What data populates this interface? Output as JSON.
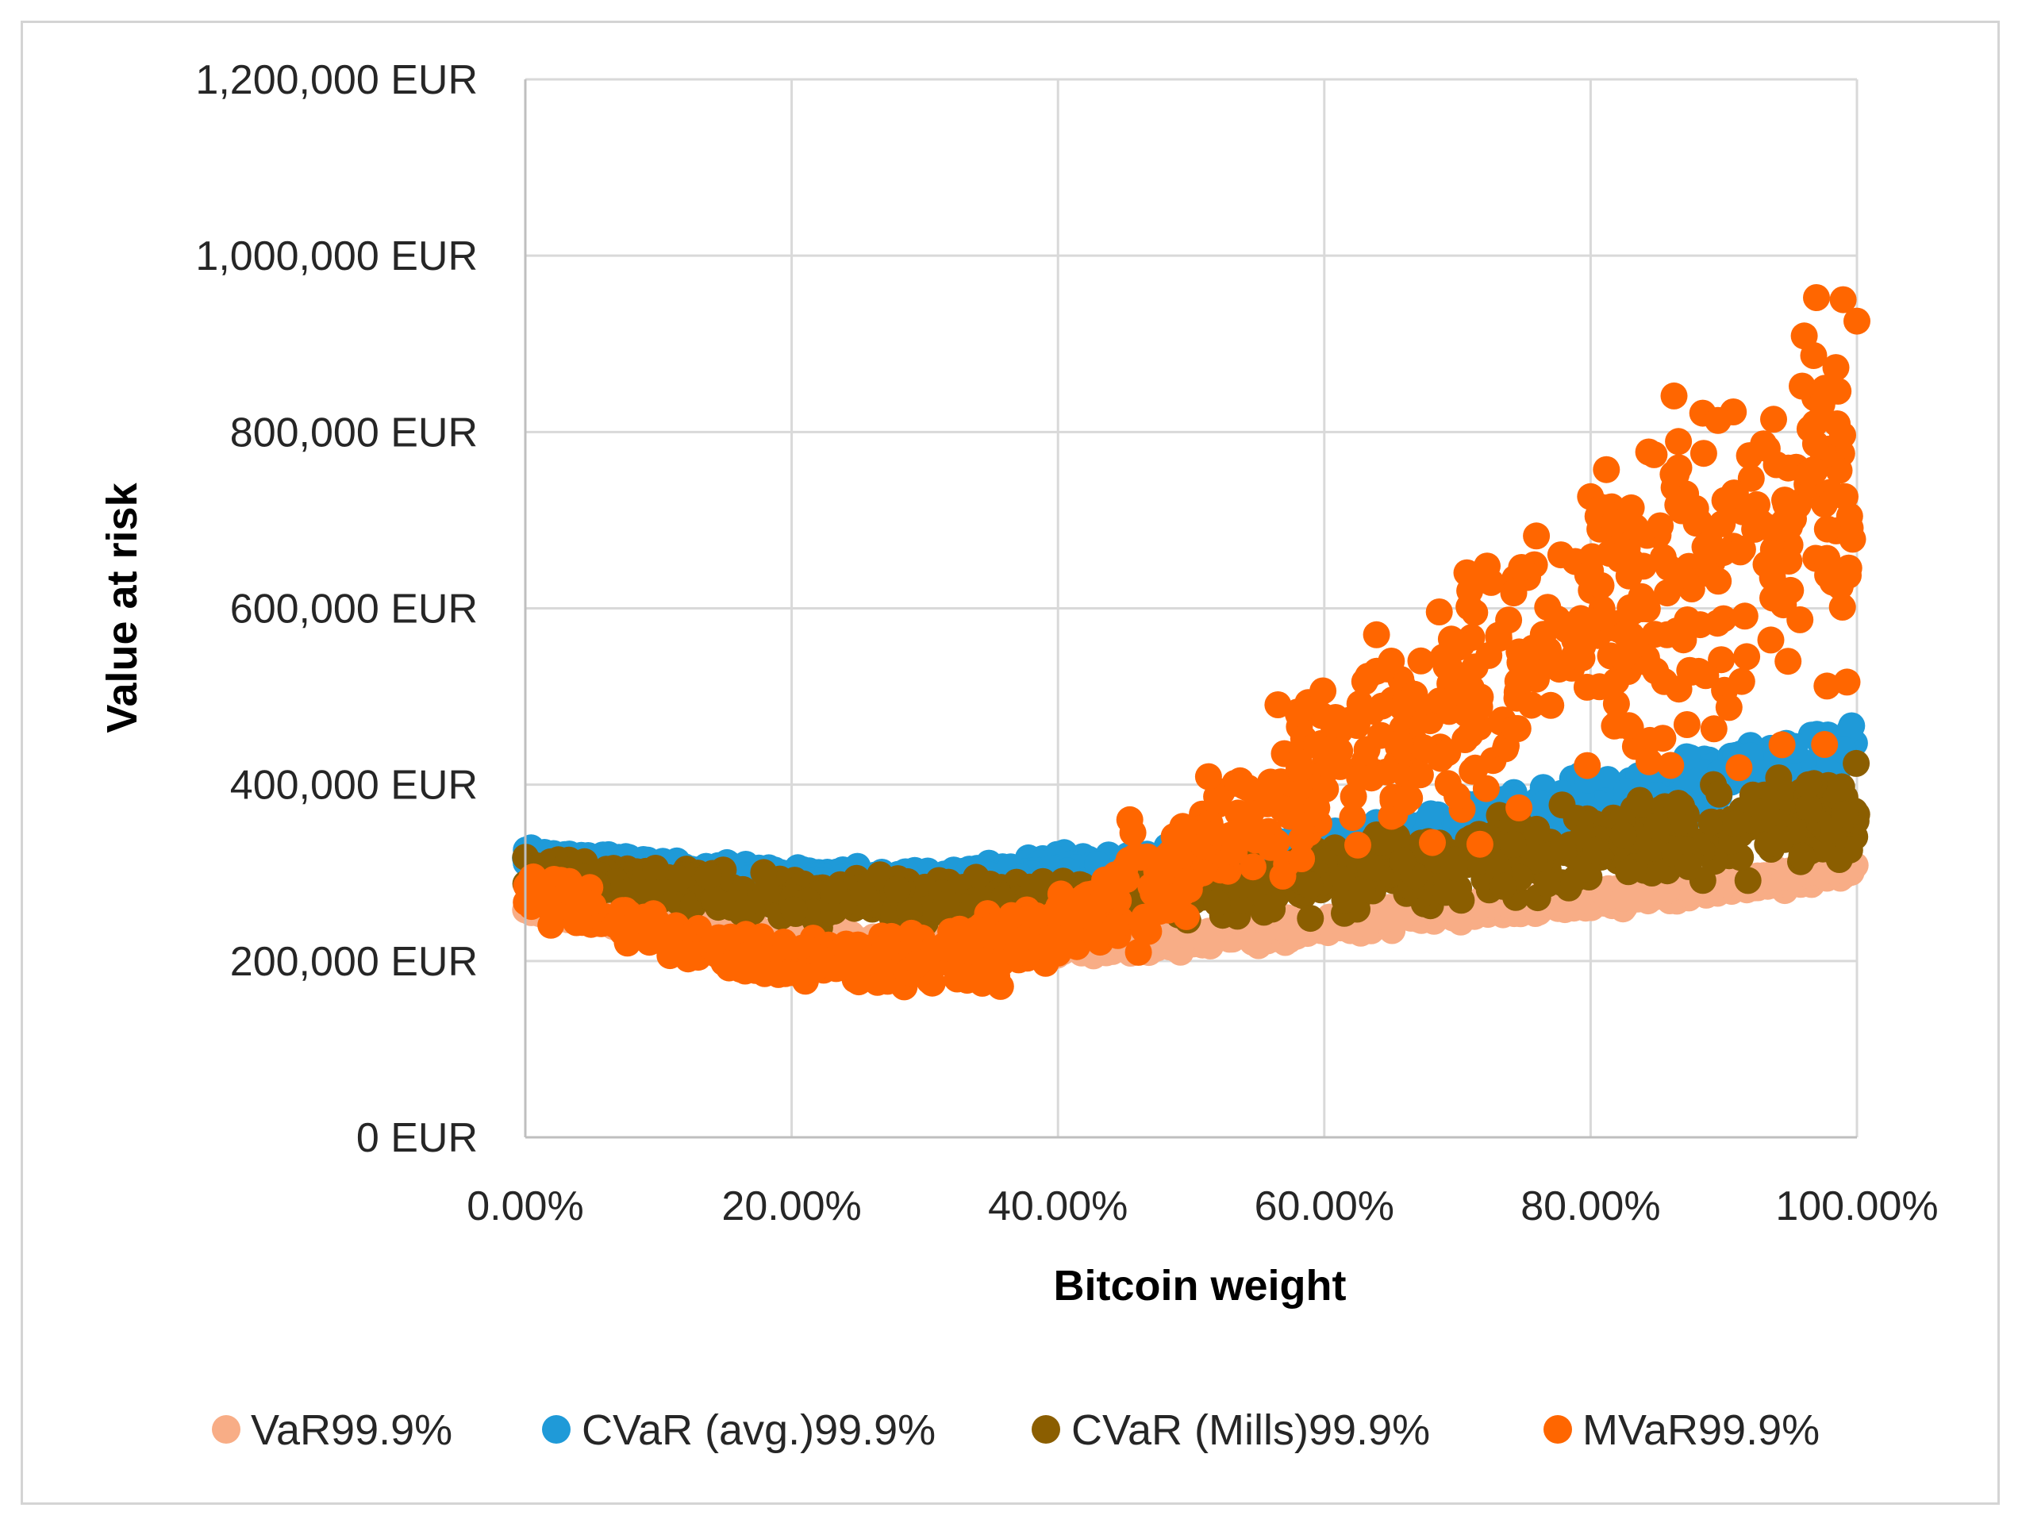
{
  "chart_data": {
    "type": "scatter",
    "title": "",
    "xlabel": "Bitcoin weight",
    "ylabel": "Value at risk",
    "xlim": [
      0,
      1
    ],
    "ylim": [
      0,
      1200000
    ],
    "x_tick_labels": [
      "0.00%",
      "20.00%",
      "40.00%",
      "60.00%",
      "80.00%",
      "100.00%"
    ],
    "x_ticks": [
      0,
      0.2,
      0.4,
      0.6,
      0.8,
      1.0
    ],
    "y_tick_labels": [
      "0 EUR",
      "200,000 EUR",
      "400,000 EUR",
      "600,000 EUR",
      "800,000 EUR",
      "1,000,000 EUR",
      "1,200,000 EUR"
    ],
    "y_ticks": [
      0,
      200000,
      400000,
      600000,
      800000,
      1000000,
      1200000
    ],
    "grid": true,
    "legend_position": "bottom",
    "series": [
      {
        "name": "VaR99.9%",
        "color": "#f8ad86",
        "x": [
          0,
          0.1,
          0.2,
          0.3,
          0.4,
          0.5,
          0.6,
          0.7,
          0.8,
          0.9,
          1.0
        ],
        "y": [
          262000,
          245000,
          225000,
          215000,
          215000,
          225000,
          240000,
          255000,
          270000,
          285000,
          305000
        ],
        "y_spread": [
          8000,
          10000,
          12000,
          12000,
          12000,
          12000,
          12000,
          12000,
          12000,
          12000,
          12000
        ]
      },
      {
        "name": "CVaR (avg.)99.9%",
        "color": "#1f9ad8",
        "x": [
          0,
          0.1,
          0.2,
          0.3,
          0.4,
          0.5,
          0.6,
          0.7,
          0.8,
          0.9,
          1.0
        ],
        "y": [
          320000,
          305000,
          295000,
          295000,
          305000,
          315000,
          330000,
          355000,
          380000,
          410000,
          440000
        ],
        "y_spread": [
          12000,
          10000,
          10000,
          10000,
          12000,
          15000,
          20000,
          25000,
          30000,
          35000,
          35000
        ]
      },
      {
        "name": "CVaR (Mills)99.9%",
        "color": "#8b5e00",
        "x": [
          0,
          0.1,
          0.2,
          0.3,
          0.4,
          0.5,
          0.6,
          0.7,
          0.8,
          0.9,
          1.0
        ],
        "y": [
          300000,
          285000,
          270000,
          268000,
          270000,
          280000,
          295000,
          310000,
          330000,
          350000,
          365000
        ],
        "y_spread": [
          20000,
          20000,
          25000,
          25000,
          25000,
          30000,
          35000,
          40000,
          45000,
          50000,
          55000
        ]
      },
      {
        "name": "MVaR99.9%",
        "color": "#ff6600",
        "x": [
          0,
          0.1,
          0.2,
          0.3,
          0.4,
          0.5,
          0.6,
          0.7,
          0.8,
          0.9,
          1.0
        ],
        "y": [
          280000,
          230000,
          200000,
          200000,
          240000,
          320000,
          420000,
          500000,
          580000,
          650000,
          750000
        ],
        "y_spread": [
          25000,
          25000,
          25000,
          30000,
          40000,
          70000,
          100000,
          130000,
          170000,
          210000,
          250000
        ]
      }
    ]
  }
}
